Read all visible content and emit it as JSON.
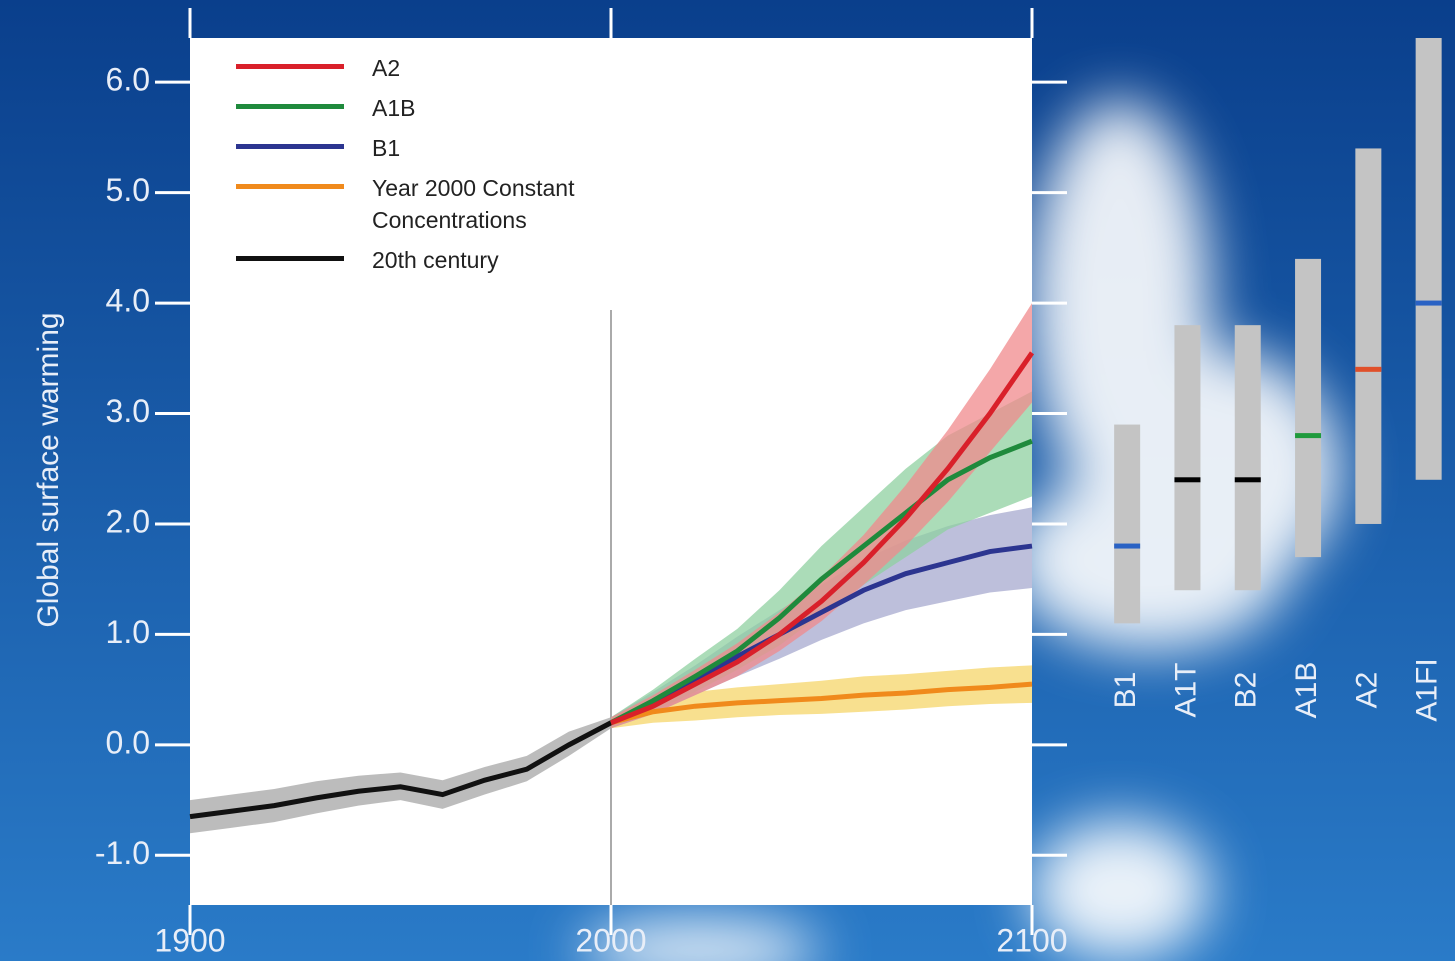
{
  "chart_data": [
    {
      "type": "line",
      "y_label": "Global surface warming",
      "xlim": [
        1900,
        2100
      ],
      "xticks": [
        1900,
        2000,
        2100
      ],
      "ylim": [
        -1.45,
        6.4
      ],
      "yticks": [
        {
          "value": -1,
          "label": "-1.0"
        },
        {
          "value": 0,
          "label": "0.0"
        },
        {
          "value": 1,
          "label": "1.0"
        },
        {
          "value": 2,
          "label": "2.0"
        },
        {
          "value": 3,
          "label": "3.0"
        },
        {
          "value": 4,
          "label": "4.0"
        },
        {
          "value": 5,
          "label": "5.0"
        },
        {
          "value": 6,
          "label": "6.0"
        }
      ],
      "reference_x": 2000,
      "legend": "upper left",
      "series": [
        {
          "name": "A2",
          "color": "#d9202a",
          "band_color": "#f08a8c",
          "x": [
            2000,
            2010,
            2020,
            2030,
            2040,
            2050,
            2060,
            2070,
            2080,
            2090,
            2100
          ],
          "values": [
            0.2,
            0.35,
            0.55,
            0.75,
            1.0,
            1.3,
            1.65,
            2.05,
            2.5,
            3.0,
            3.55
          ],
          "lower": [
            0.15,
            0.28,
            0.45,
            0.62,
            0.85,
            1.12,
            1.45,
            1.8,
            2.2,
            2.65,
            3.1
          ],
          "upper": [
            0.25,
            0.45,
            0.68,
            0.92,
            1.2,
            1.52,
            1.9,
            2.35,
            2.85,
            3.4,
            4.0
          ]
        },
        {
          "name": "A1B",
          "color": "#1f8a3c",
          "band_color": "#8fd0a0",
          "x": [
            2000,
            2010,
            2020,
            2030,
            2040,
            2050,
            2060,
            2070,
            2080,
            2090,
            2100
          ],
          "values": [
            0.2,
            0.4,
            0.62,
            0.85,
            1.15,
            1.5,
            1.8,
            2.1,
            2.4,
            2.6,
            2.75
          ],
          "lower": [
            0.15,
            0.3,
            0.48,
            0.68,
            0.9,
            1.18,
            1.45,
            1.7,
            1.95,
            2.1,
            2.25
          ],
          "upper": [
            0.25,
            0.5,
            0.78,
            1.05,
            1.4,
            1.8,
            2.15,
            2.5,
            2.8,
            3.0,
            3.2
          ]
        },
        {
          "name": "B1",
          "color": "#2c3590",
          "band_color": "#a7a9cf",
          "x": [
            2000,
            2010,
            2020,
            2030,
            2040,
            2050,
            2060,
            2070,
            2080,
            2090,
            2100
          ],
          "values": [
            0.2,
            0.38,
            0.58,
            0.8,
            1.0,
            1.2,
            1.4,
            1.55,
            1.65,
            1.75,
            1.8
          ],
          "lower": [
            0.15,
            0.28,
            0.45,
            0.62,
            0.78,
            0.95,
            1.1,
            1.22,
            1.3,
            1.38,
            1.42
          ],
          "upper": [
            0.25,
            0.48,
            0.72,
            0.98,
            1.22,
            1.45,
            1.68,
            1.85,
            1.98,
            2.08,
            2.15
          ]
        },
        {
          "name": "Year 2000 Constant Concentrations",
          "color": "#f08a1c",
          "band_color": "#f6d66a",
          "x": [
            2000,
            2010,
            2020,
            2030,
            2040,
            2050,
            2060,
            2070,
            2080,
            2090,
            2100
          ],
          "values": [
            0.2,
            0.3,
            0.35,
            0.38,
            0.4,
            0.42,
            0.45,
            0.47,
            0.5,
            0.52,
            0.55
          ],
          "lower": [
            0.15,
            0.2,
            0.22,
            0.25,
            0.27,
            0.28,
            0.3,
            0.32,
            0.35,
            0.37,
            0.38
          ],
          "upper": [
            0.25,
            0.42,
            0.48,
            0.52,
            0.55,
            0.58,
            0.62,
            0.64,
            0.67,
            0.7,
            0.72
          ]
        },
        {
          "name": "20th century",
          "color": "#111111",
          "band_color": "#a6a6a6",
          "x": [
            1900,
            1910,
            1920,
            1930,
            1940,
            1950,
            1960,
            1970,
            1980,
            1990,
            2000
          ],
          "values": [
            -0.65,
            -0.6,
            -0.55,
            -0.48,
            -0.42,
            -0.38,
            -0.45,
            -0.32,
            -0.22,
            0.0,
            0.2
          ],
          "lower": [
            -0.8,
            -0.75,
            -0.7,
            -0.62,
            -0.55,
            -0.5,
            -0.58,
            -0.45,
            -0.33,
            -0.1,
            0.15
          ],
          "upper": [
            -0.5,
            -0.45,
            -0.4,
            -0.33,
            -0.28,
            -0.25,
            -0.32,
            -0.2,
            -0.1,
            0.12,
            0.25
          ]
        }
      ]
    },
    {
      "type": "range",
      "ylim": [
        -1.45,
        6.4
      ],
      "bar_color": "#c4c4c4",
      "categories": [
        "B1",
        "A1T",
        "B2",
        "A1B",
        "A2",
        "A1FI"
      ],
      "low": [
        1.1,
        1.4,
        1.4,
        1.7,
        2.0,
        2.4
      ],
      "high": [
        2.9,
        3.8,
        3.8,
        4.4,
        5.4,
        6.4
      ],
      "best": [
        1.8,
        2.4,
        2.4,
        2.8,
        3.4,
        4.0
      ],
      "best_colors": [
        "#2a62c4",
        "#000000",
        "#000000",
        "#1f9a3c",
        "#e0502a",
        "#2a62c4"
      ]
    }
  ]
}
